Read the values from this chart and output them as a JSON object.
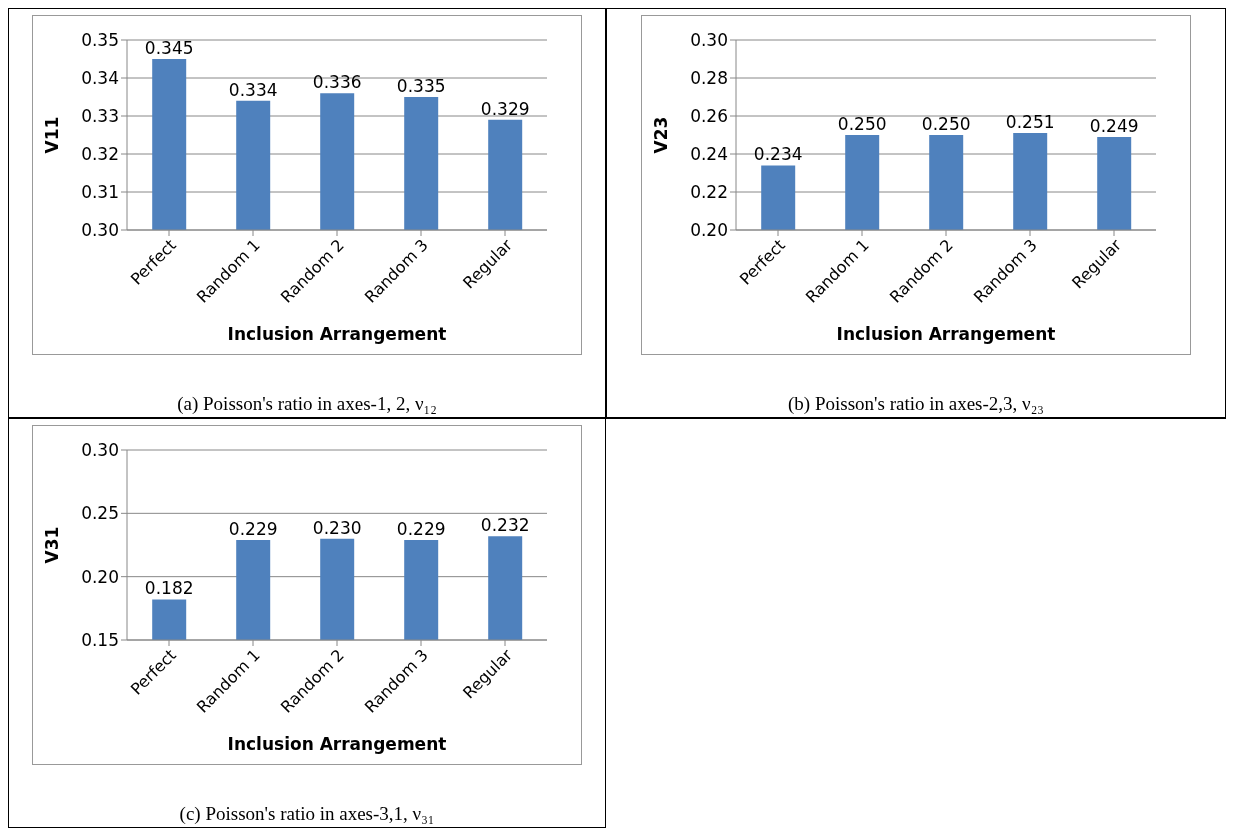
{
  "chart_data": [
    {
      "type": "bar",
      "xlabel": "Inclusion Arrangement",
      "ylabel": "V11",
      "categories": [
        "Perfect",
        "Random 1",
        "Random 2",
        "Random 3",
        "Regular"
      ],
      "values": [
        0.345,
        0.334,
        0.336,
        0.335,
        0.329
      ],
      "value_labels": [
        "0.345",
        "0.334",
        "0.336",
        "0.335",
        "0.329"
      ],
      "color": "#4f81bd",
      "ylim": [
        0.3,
        0.35
      ],
      "yticks": [
        {
          "value": 0.3,
          "label": "0.30"
        },
        {
          "value": 0.31,
          "label": "0.31"
        },
        {
          "value": 0.32,
          "label": "0.32"
        },
        {
          "value": 0.33,
          "label": "0.33"
        },
        {
          "value": 0.34,
          "label": "0.34"
        },
        {
          "value": 0.35,
          "label": "0.35"
        }
      ],
      "grid": "y",
      "annotations": [
        "(a) Poisson's ratio in axes-1, 2, ν₁₂"
      ]
    },
    {
      "type": "bar",
      "xlabel": "Inclusion Arrangement",
      "ylabel": "V23",
      "categories": [
        "Perfect",
        "Random 1",
        "Random 2",
        "Random 3",
        "Regular"
      ],
      "values": [
        0.234,
        0.25,
        0.25,
        0.251,
        0.249
      ],
      "value_labels": [
        "0.234",
        "0.250",
        "0.250",
        "0.251",
        "0.249"
      ],
      "color": "#4f81bd",
      "ylim": [
        0.2,
        0.3
      ],
      "yticks": [
        {
          "value": 0.2,
          "label": "0.20"
        },
        {
          "value": 0.22,
          "label": "0.22"
        },
        {
          "value": 0.24,
          "label": "0.24"
        },
        {
          "value": 0.26,
          "label": "0.26"
        },
        {
          "value": 0.28,
          "label": "0.28"
        },
        {
          "value": 0.3,
          "label": "0.30"
        }
      ],
      "grid": "y",
      "annotations": [
        "(b) Poisson's ratio in axes-2,3, ν₂₃"
      ]
    },
    {
      "type": "bar",
      "xlabel": "Inclusion Arrangement",
      "ylabel": "V31",
      "categories": [
        "Perfect",
        "Random 1",
        "Random 2",
        "Random 3",
        "Regular"
      ],
      "values": [
        0.182,
        0.229,
        0.23,
        0.229,
        0.232
      ],
      "value_labels": [
        "0.182",
        "0.229",
        "0.230",
        "0.229",
        "0.232"
      ],
      "color": "#4f81bd",
      "ylim": [
        0.15,
        0.3
      ],
      "yticks": [
        {
          "value": 0.15,
          "label": "0.15"
        },
        {
          "value": 0.2,
          "label": "0.20"
        },
        {
          "value": 0.25,
          "label": "0.25"
        },
        {
          "value": 0.3,
          "label": "0.30"
        }
      ],
      "grid": "y",
      "annotations": [
        "(c) Poisson's ratio in axes-3,1, ν₃₁"
      ]
    }
  ]
}
